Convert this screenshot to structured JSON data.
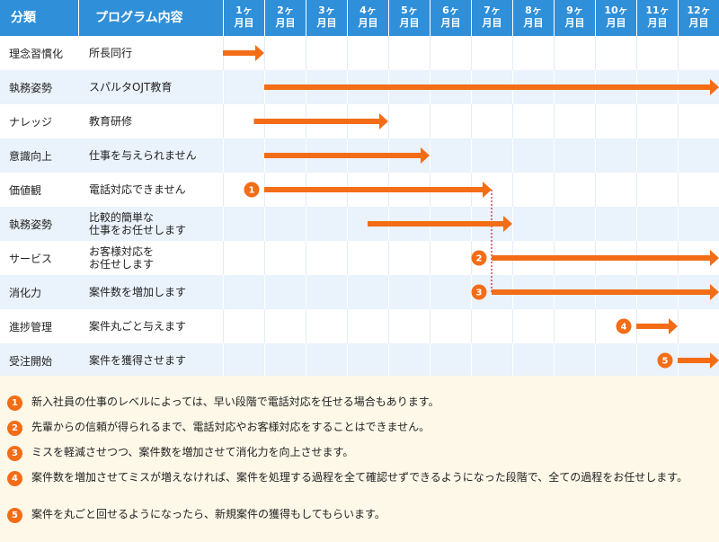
{
  "header": {
    "category_label": "分類",
    "program_label": "プログラム内容",
    "months": [
      {
        "n": "1ヶ",
        "m": "月目"
      },
      {
        "n": "2ヶ",
        "m": "月目"
      },
      {
        "n": "3ヶ",
        "m": "月目"
      },
      {
        "n": "4ヶ",
        "m": "月目"
      },
      {
        "n": "5ヶ",
        "m": "月目"
      },
      {
        "n": "6ヶ",
        "m": "月目"
      },
      {
        "n": "7ヶ",
        "m": "月目"
      },
      {
        "n": "8ヶ",
        "m": "月目"
      },
      {
        "n": "9ヶ",
        "m": "月目"
      },
      {
        "n": "10ヶ",
        "m": "月目"
      },
      {
        "n": "11ヶ",
        "m": "月目"
      },
      {
        "n": "12ヶ",
        "m": "月目"
      }
    ]
  },
  "rows": [
    {
      "category": "理念習慣化",
      "program": [
        "所長同行"
      ]
    },
    {
      "category": "執務姿勢",
      "program": [
        "スパルタOJT教育"
      ]
    },
    {
      "category": "ナレッジ",
      "program": [
        "教育研修"
      ]
    },
    {
      "category": "意識向上",
      "program": [
        "仕事を与えられません"
      ]
    },
    {
      "category": "価値観",
      "program": [
        "電話対応できません"
      ]
    },
    {
      "category": "執務姿勢",
      "program": [
        "比較的簡単な",
        "仕事をお任せします"
      ]
    },
    {
      "category": "サービス",
      "program": [
        "お客様対応を",
        "お任せします"
      ]
    },
    {
      "category": "消化力",
      "program": [
        "案件数を増加します"
      ]
    },
    {
      "category": "進捗管理",
      "program": [
        "案件丸ごと与えます"
      ]
    },
    {
      "category": "受注開始",
      "program": [
        "案件を獲得させます"
      ]
    }
  ],
  "chart_data": {
    "type": "bar",
    "subtype": "gantt",
    "x_unit": "month",
    "xlim": [
      0,
      12
    ],
    "categories": [
      "所長同行",
      "スパルタOJT教育",
      "教育研修",
      "仕事を与えられません",
      "電話対応できません",
      "比較的簡単な仕事をお任せします",
      "お客様対応をお任せします",
      "案件数を増加します",
      "案件丸ごと与えます",
      "案件を獲得させます"
    ],
    "bars": [
      {
        "start": 0.0,
        "end": 1.0,
        "marker": null
      },
      {
        "start": 1.0,
        "end": 12.0,
        "marker": null
      },
      {
        "start": 0.75,
        "end": 4.0,
        "marker": null
      },
      {
        "start": 1.0,
        "end": 5.0,
        "marker": null
      },
      {
        "start": 1.0,
        "end": 6.5,
        "marker": "1"
      },
      {
        "start": 3.5,
        "end": 7.0,
        "marker": null
      },
      {
        "start": 6.5,
        "end": 12.0,
        "marker": "2"
      },
      {
        "start": 6.5,
        "end": 12.0,
        "marker": "3"
      },
      {
        "start": 10.0,
        "end": 11.0,
        "marker": "4"
      },
      {
        "start": 11.0,
        "end": 12.0,
        "marker": "5"
      }
    ],
    "dotted_connector": {
      "month": 6.5,
      "from_row": 4,
      "to_row": 7
    },
    "colors": {
      "bar": "#f36d17",
      "header": "#2f8fd8",
      "row_alt": "#eaf2fb",
      "connector": "#c0143c"
    }
  },
  "notes": [
    {
      "num": "1",
      "text": "新入社員の仕事のレベルによっては、早い段階で電話対応を任せる場合もあります。"
    },
    {
      "num": "2",
      "text": "先輩からの信頼が得られるまで、電話対応やお客様対応をすることはできません。"
    },
    {
      "num": "3",
      "text": "ミスを軽減させつつ、案件数を増加させて消化力を向上させます。"
    },
    {
      "num": "4",
      "text": "案件数を増加させてミスが増えなければ、案件を処理する過程を全て確認せずできるようになった段階で、全ての過程をお任せします。"
    },
    {
      "num": "5",
      "text": "案件を丸ごと回せるようになったら、新規案件の獲得もしてもらいます。"
    }
  ]
}
